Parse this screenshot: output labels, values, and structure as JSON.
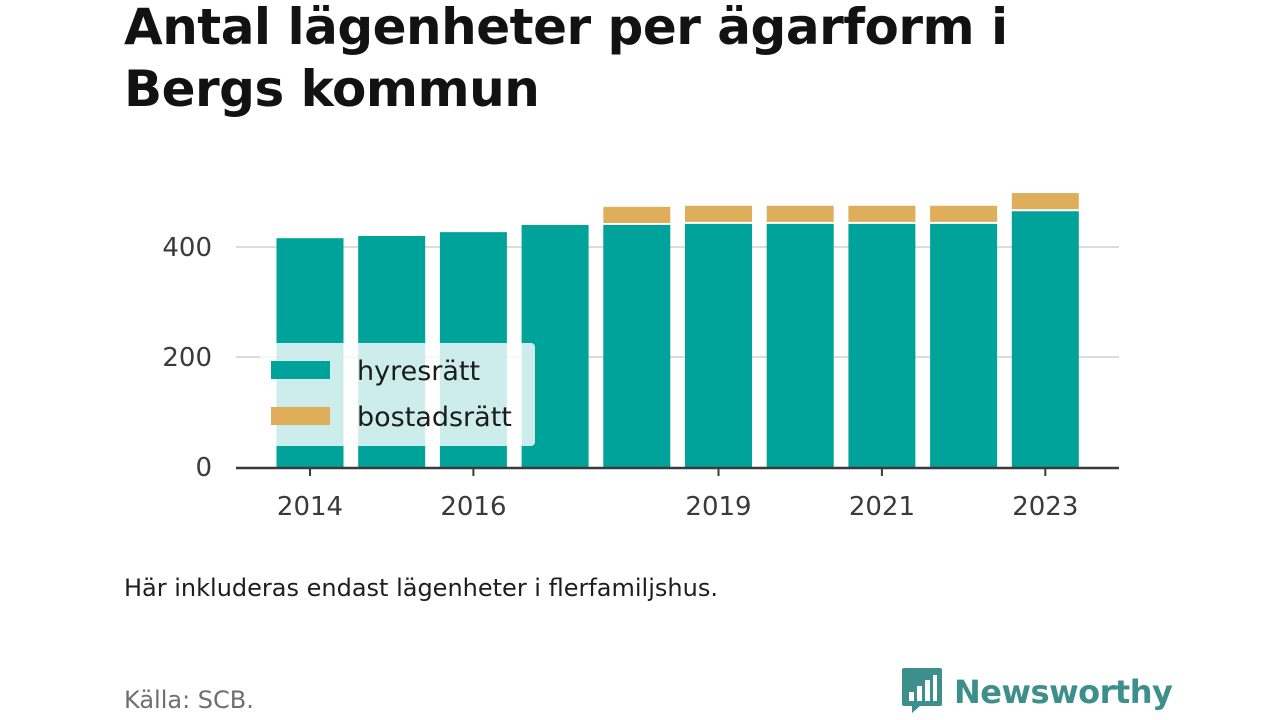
{
  "title": "Antal lägenheter per ägarform i Bergs kommun",
  "note": "Här inkluderas endast lägenheter i flerfamiljshus.",
  "source": "Källa: SCB.",
  "brand": {
    "name": "Newsworthy",
    "logo_icon": "bar-chart-speech-bubble-icon",
    "color": "#3d8f8b"
  },
  "chart_data": {
    "type": "bar",
    "stacked": true,
    "categories": [
      "2014",
      "2015",
      "2016",
      "2017",
      "2018",
      "2019",
      "2020",
      "2021",
      "2022",
      "2023"
    ],
    "x_tick_labels": [
      "2014",
      "2016",
      "2019",
      "2021",
      "2023"
    ],
    "series": [
      {
        "name": "hyresrätt",
        "color": "#00a399",
        "values": [
          416,
          420,
          427,
          440,
          440,
          442,
          442,
          442,
          442,
          465
        ]
      },
      {
        "name": "bostadsrätt",
        "color": "#dfae5a",
        "values": [
          0,
          0,
          0,
          0,
          33,
          33,
          33,
          33,
          33,
          33
        ]
      }
    ],
    "y_ticks": [
      0,
      200,
      400
    ],
    "ylim": [
      0,
      500
    ],
    "grid": true,
    "legend_position": "bottom-left"
  }
}
